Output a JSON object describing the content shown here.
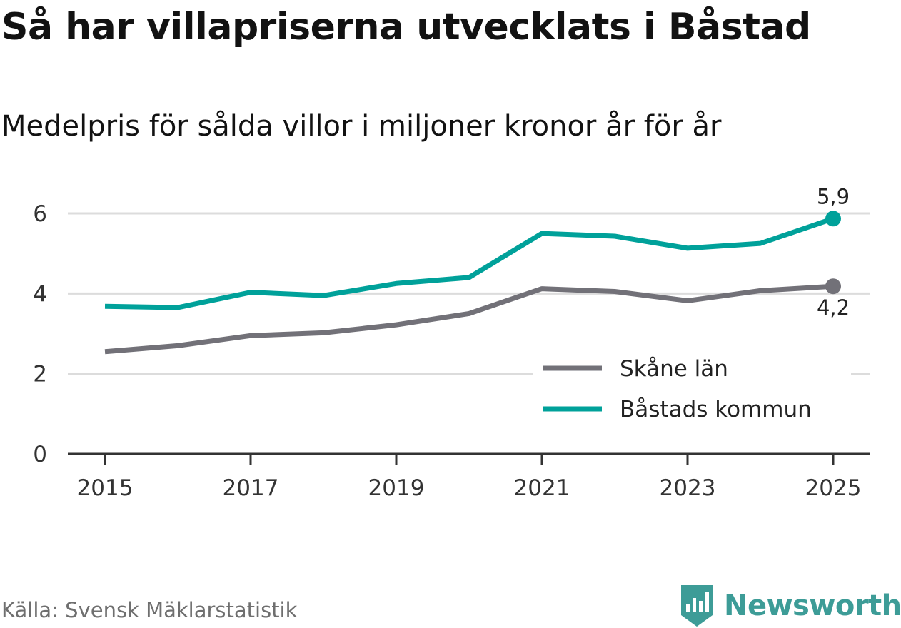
{
  "header": {
    "title": "Så har villapriserna utvecklats i Båstad",
    "subtitle": "Medelpris för sålda villor i miljoner kronor år för år"
  },
  "footer": {
    "source": "Källa: Svensk Mäklarstatistik",
    "brand": "Newsworthy",
    "brand_icon": "newsworthy-logo-icon",
    "brand_color": "#3d9c97"
  },
  "chart_data": {
    "type": "line",
    "title": "Så har villapriserna utvecklats i Båstad",
    "subtitle": "Medelpris för sålda villor i miljoner kronor år för år",
    "xlabel": "",
    "ylabel": "",
    "x": [
      2015,
      2016,
      2017,
      2018,
      2019,
      2020,
      2021,
      2022,
      2023,
      2024,
      2025
    ],
    "x_tick_labels": [
      "2015",
      "2017",
      "2019",
      "2021",
      "2023",
      "2025"
    ],
    "x_tick_values": [
      2015,
      2017,
      2019,
      2021,
      2023,
      2025
    ],
    "y_tick_labels": [
      "0",
      "2",
      "4",
      "6"
    ],
    "y_tick_values": [
      0,
      2,
      4,
      6
    ],
    "ylim": [
      0,
      6.6
    ],
    "grid": true,
    "legend_position": "bottom-right",
    "series": [
      {
        "name": "Skåne län",
        "color": "#727178",
        "values": [
          2.55,
          2.7,
          2.95,
          3.02,
          3.22,
          3.5,
          4.12,
          4.05,
          3.82,
          4.07,
          4.18
        ],
        "end_label": "4,2"
      },
      {
        "name": "Båstads kommun",
        "color": "#00a19a",
        "values": [
          3.68,
          3.65,
          4.03,
          3.95,
          4.25,
          4.4,
          5.5,
          5.43,
          5.13,
          5.25,
          5.87
        ],
        "end_label": "5,9"
      }
    ]
  }
}
